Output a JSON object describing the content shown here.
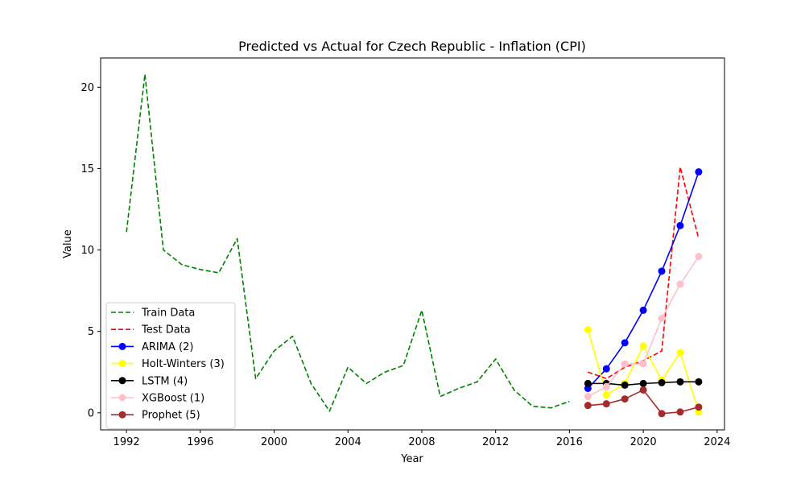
{
  "chart_data": {
    "type": "line",
    "title": "Predicted vs Actual for Czech Republic - Inflation (CPI)",
    "xlabel": "Year",
    "ylabel": "Value",
    "xlim": [
      1990.6,
      2024.4
    ],
    "ylim": [
      -1.05,
      21.8
    ],
    "xticks": [
      1992,
      1996,
      2000,
      2004,
      2008,
      2012,
      2016,
      2020,
      2024
    ],
    "yticks": [
      0,
      5,
      10,
      15,
      20
    ],
    "legend_position": "lower-left",
    "series": [
      {
        "name": "Train Data",
        "color": "#008000",
        "style": "dashed",
        "marker": false,
        "x": [
          1992,
          1993,
          1994,
          1995,
          1996,
          1997,
          1998,
          1999,
          2000,
          2001,
          2002,
          2003,
          2004,
          2005,
          2006,
          2007,
          2008,
          2009,
          2010,
          2011,
          2012,
          2013,
          2014,
          2015,
          2016
        ],
        "y": [
          11.1,
          20.8,
          10.0,
          9.1,
          8.8,
          8.6,
          10.7,
          2.1,
          3.8,
          4.7,
          1.8,
          0.1,
          2.8,
          1.8,
          2.5,
          2.9,
          6.3,
          1.0,
          1.5,
          1.9,
          3.3,
          1.4,
          0.4,
          0.3,
          0.7
        ]
      },
      {
        "name": "Test Data",
        "color": "#ff0000",
        "style": "dashed",
        "marker": false,
        "x": [
          2017,
          2018,
          2019,
          2020,
          2021,
          2022,
          2023
        ],
        "y": [
          2.5,
          2.1,
          2.8,
          3.2,
          3.8,
          15.1,
          10.7
        ]
      },
      {
        "name": "ARIMA (2)",
        "color": "#0000ff",
        "style": "solid",
        "marker": true,
        "x": [
          2017,
          2018,
          2019,
          2020,
          2021,
          2022,
          2023
        ],
        "y": [
          1.5,
          2.7,
          4.3,
          6.3,
          8.7,
          11.5,
          14.8
        ]
      },
      {
        "name": "Holt-Winters (3)",
        "color": "#ffff00",
        "style": "solid",
        "marker": true,
        "x": [
          2017,
          2018,
          2019,
          2020,
          2021,
          2022,
          2023
        ],
        "y": [
          5.1,
          1.1,
          1.8,
          4.1,
          2.0,
          3.7,
          0.05
        ]
      },
      {
        "name": "LSTM (4)",
        "color": "#000000",
        "style": "solid",
        "marker": true,
        "x": [
          2017,
          2018,
          2019,
          2020,
          2021,
          2022,
          2023
        ],
        "y": [
          1.8,
          1.8,
          1.7,
          1.8,
          1.85,
          1.9,
          1.9
        ]
      },
      {
        "name": "XGBoost (1)",
        "color": "#ffc0cb",
        "style": "solid",
        "marker": true,
        "x": [
          2017,
          2018,
          2019,
          2020,
          2021,
          2022,
          2023
        ],
        "y": [
          1.0,
          1.6,
          3.0,
          3.0,
          5.8,
          7.9,
          9.6
        ]
      },
      {
        "name": "Prophet (5)",
        "color": "#a52a2a",
        "style": "solid",
        "marker": true,
        "x": [
          2017,
          2018,
          2019,
          2020,
          2021,
          2022,
          2023
        ],
        "y": [
          0.45,
          0.55,
          0.85,
          1.4,
          -0.05,
          0.05,
          0.35
        ]
      }
    ]
  }
}
